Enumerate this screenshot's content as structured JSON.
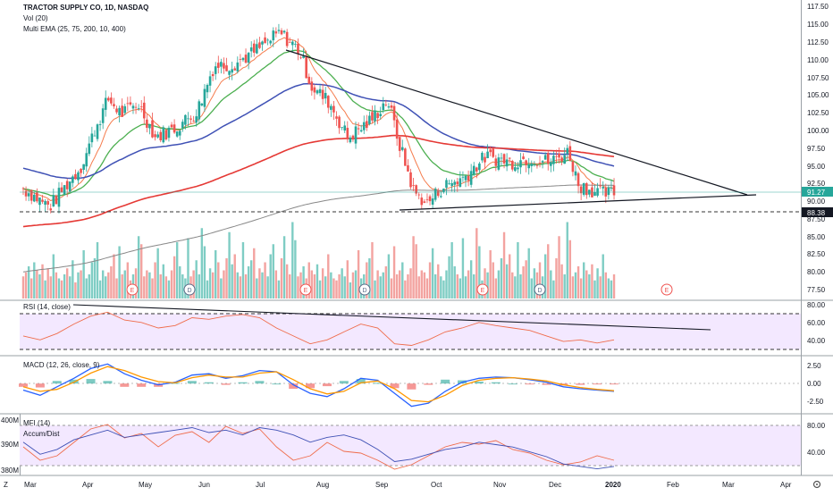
{
  "legend": {
    "symbol": "TRACTOR SUPPLY CO, 1D, NASDAQ",
    "volume": "Vol (20)",
    "ema": "Multi EMA (25, 75, 200, 10, 400)",
    "rsi": "RSI (14, close)",
    "macd": "MACD (12, 26, close, 9)",
    "mfi": "MFI (14)",
    "accum": "Accum/Dist"
  },
  "price_axis": {
    "ticks": [
      "117.50",
      "115.00",
      "112.50",
      "110.00",
      "107.50",
      "105.00",
      "102.50",
      "100.00",
      "97.50",
      "95.00",
      "92.50",
      "90.00",
      "87.50",
      "85.00",
      "82.50",
      "80.00",
      "77.50"
    ],
    "last_price": "91.27",
    "support_price": "88.38"
  },
  "rsi_axis": {
    "ticks": [
      "80.00",
      "60.00",
      "40.00"
    ]
  },
  "macd_axis": {
    "ticks": [
      "2.50",
      "0.00",
      "-2.50"
    ]
  },
  "mfi_axis": {
    "ticks": [
      "80.00",
      "40.00"
    ]
  },
  "accum_axis": {
    "ticks": [
      "400M",
      "390M",
      "380M"
    ]
  },
  "time_axis": {
    "labels": [
      "Mar",
      "Apr",
      "May",
      "Jun",
      "Jul",
      "Aug",
      "Sep",
      "Oct",
      "Nov",
      "Dec",
      "2020",
      "Feb",
      "Mar",
      "Apr"
    ]
  },
  "events": [
    "E",
    "D",
    "E",
    "D",
    "E",
    "D",
    "E"
  ],
  "colors": {
    "up": "#26a69a",
    "down": "#ef5350",
    "ema25": "#f57c4d",
    "ema75": "#4caf50",
    "ema200": "#3f51b5",
    "ema400": "#e53935",
    "ema_long": "#888888",
    "panel_fill": "#f3e8ff"
  },
  "footer": {
    "z": "Z"
  },
  "chart_data": {
    "type": "candlestick",
    "title": "TRACTOR SUPPLY CO, 1D, NASDAQ",
    "ylim": [
      76,
      118.5
    ],
    "x_range": [
      "2019-03-01",
      "2020-04-15"
    ],
    "points": [
      [
        "2019-03-01",
        94.3,
        92.0
      ],
      [
        "2019-03-15",
        90.2,
        89.4
      ],
      [
        "2019-04-01",
        92.8,
        95.3
      ],
      [
        "2019-04-08",
        97.5,
        100.5
      ],
      [
        "2019-04-15",
        103.0,
        104.8
      ],
      [
        "2019-04-22",
        103.5,
        102.7
      ],
      [
        "2019-05-01",
        105.8,
        104.2
      ],
      [
        "2019-05-10",
        101.7,
        99.4
      ],
      [
        "2019-05-20",
        99.5,
        100.6
      ],
      [
        "2019-06-01",
        101.0,
        103.0
      ],
      [
        "2019-06-10",
        106.2,
        109.6
      ],
      [
        "2019-06-20",
        107.6,
        109.8
      ],
      [
        "2019-07-01",
        108.6,
        111.5
      ],
      [
        "2019-07-15",
        113.0,
        114.3
      ],
      [
        "2019-07-25",
        113.3,
        111.9
      ],
      [
        "2019-08-01",
        109.2,
        106.5
      ],
      [
        "2019-08-10",
        106.7,
        104.4
      ],
      [
        "2019-08-20",
        101.0,
        99.3
      ],
      [
        "2019-09-01",
        100.5,
        101.7
      ],
      [
        "2019-09-10",
        103.5,
        104.8
      ],
      [
        "2019-09-16",
        102.2,
        98.6
      ],
      [
        "2019-09-24",
        94.5,
        91.5
      ],
      [
        "2019-10-01",
        90.3,
        89.9
      ],
      [
        "2019-10-10",
        91.1,
        92.4
      ],
      [
        "2019-10-20",
        92.5,
        93.5
      ],
      [
        "2019-11-01",
        95.0,
        96.6
      ],
      [
        "2019-11-15",
        96.6,
        95.8
      ],
      [
        "2019-11-25",
        97.3,
        96.4
      ],
      [
        "2019-12-05",
        96.2,
        95.8
      ],
      [
        "2019-12-15",
        96.0,
        97.3
      ],
      [
        "2019-12-20",
        96.5,
        92.6
      ],
      [
        "2020-01-01",
        91.7,
        91.3
      ],
      [
        "2020-01-08",
        90.6,
        91.3
      ]
    ],
    "volume_values": [
      11,
      13,
      16,
      10,
      18,
      14,
      12,
      17,
      9,
      15,
      11,
      22,
      13,
      10,
      9,
      12,
      15,
      11,
      19,
      8,
      13,
      14,
      24,
      10,
      12,
      18,
      20,
      28,
      9,
      14,
      11,
      13,
      16,
      22,
      10,
      26,
      12,
      14,
      18,
      9,
      12,
      15,
      31,
      27,
      11,
      14,
      13,
      10,
      18,
      25,
      12,
      17,
      11,
      9,
      14,
      21,
      28,
      16,
      12,
      10,
      30,
      11,
      14,
      19,
      12,
      35,
      26,
      9,
      15,
      13,
      24,
      18,
      10,
      14,
      20,
      33,
      17,
      22,
      13,
      11,
      28,
      12,
      16,
      19,
      25,
      10,
      15,
      13,
      18,
      11,
      22,
      27,
      14,
      9,
      20,
      31,
      17,
      12,
      38,
      29
    ],
    "rsi_ylim": [
      20,
      90
    ],
    "rsi_values": [
      45,
      40,
      48,
      60,
      70,
      75,
      65,
      62,
      55,
      58,
      68,
      66,
      70,
      72,
      68,
      55,
      45,
      35,
      40,
      50,
      60,
      55,
      35,
      33,
      40,
      50,
      55,
      62,
      58,
      55,
      52,
      45,
      38,
      40,
      36,
      40
    ],
    "macd_ylim": [
      -4.5,
      4
    ],
    "macd_values": [
      -1,
      -1.8,
      -0.5,
      0.8,
      2.3,
      3.0,
      1.5,
      0.5,
      -0.2,
      0.2,
      1.3,
      1.5,
      0.8,
      1.2,
      2.0,
      1.8,
      -0.2,
      -1.5,
      -2.0,
      -0.8,
      0.8,
      0.5,
      -1.5,
      -3.5,
      -3.0,
      -1.2,
      0.2,
      0.8,
      1.0,
      0.9,
      0.6,
      0.2,
      -0.5,
      -0.8,
      -1.0,
      -1.2
    ],
    "signal_values": [
      -0.5,
      -1.2,
      -0.9,
      0.2,
      1.6,
      2.6,
      2.0,
      1.0,
      0.3,
      0.1,
      0.9,
      1.3,
      1.0,
      1.0,
      1.6,
      1.8,
      0.6,
      -0.8,
      -1.6,
      -1.2,
      0.1,
      0.4,
      -0.8,
      -2.6,
      -2.8,
      -1.8,
      -0.3,
      0.5,
      0.8,
      0.9,
      0.7,
      0.4,
      -0.2,
      -0.6,
      -0.9,
      -1.1
    ],
    "mfi_ylim": [
      25,
      90
    ],
    "mfi_values": [
      55,
      40,
      45,
      60,
      75,
      80,
      65,
      70,
      55,
      68,
      72,
      60,
      78,
      70,
      75,
      55,
      40,
      45,
      60,
      50,
      48,
      40,
      30,
      35,
      45,
      55,
      60,
      58,
      62,
      52,
      48,
      40,
      35,
      38,
      45,
      40
    ],
    "accum_ylim": [
      378,
      402
    ],
    "accum_values": [
      391,
      386,
      388,
      392,
      394,
      396,
      393,
      394,
      395,
      396,
      397,
      395,
      396,
      394,
      397,
      396,
      394,
      391,
      393,
      394,
      392,
      388,
      383,
      384,
      386,
      388,
      389,
      391,
      390,
      389,
      387,
      385,
      382,
      381,
      380,
      381
    ]
  }
}
